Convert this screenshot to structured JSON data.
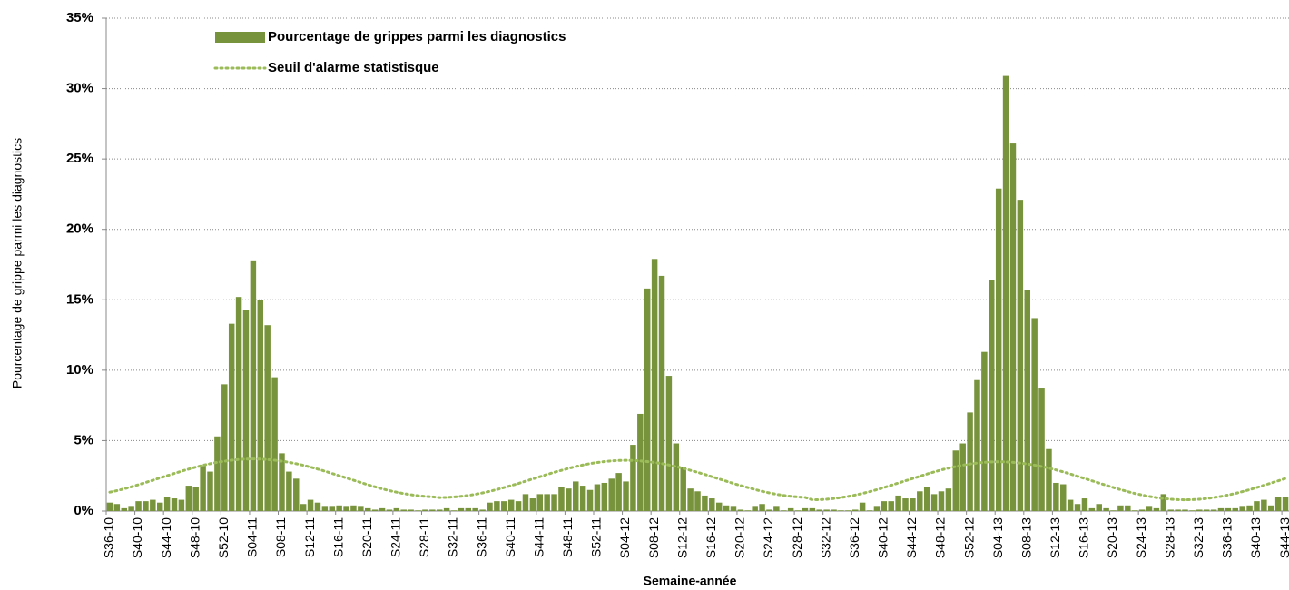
{
  "chart_data": {
    "type": "bar",
    "x_label": "Semaine-année",
    "y_label": "Pourcentage de grippe parmi les diagnostics",
    "categories": [
      "S36-10",
      null,
      null,
      null,
      "S40-10",
      null,
      null,
      null,
      "S44-10",
      null,
      null,
      null,
      "S48-10",
      null,
      null,
      null,
      "S52-10",
      null,
      null,
      null,
      "S04-11",
      null,
      null,
      null,
      "S08-11",
      null,
      null,
      null,
      "S12-11",
      null,
      null,
      null,
      "S16-11",
      null,
      null,
      null,
      "S20-11",
      null,
      null,
      null,
      "S24-11",
      null,
      null,
      null,
      "S28-11",
      null,
      null,
      null,
      "S32-11",
      null,
      null,
      null,
      "S36-11",
      null,
      null,
      null,
      "S40-11",
      null,
      null,
      null,
      "S44-11",
      null,
      null,
      null,
      "S48-11",
      null,
      null,
      null,
      "S52-11",
      null,
      null,
      null,
      "S04-12",
      null,
      null,
      null,
      "S08-12",
      null,
      null,
      null,
      "S12-12",
      null,
      null,
      null,
      "S16-12",
      null,
      null,
      null,
      "S20-12",
      null,
      null,
      null,
      "S24-12",
      null,
      null,
      null,
      "S28-12",
      null,
      null,
      null,
      "S32-12",
      null,
      null,
      null,
      "S36-12",
      null,
      null,
      null,
      "S40-12",
      null,
      null,
      null,
      "S44-12",
      null,
      null,
      null,
      "S48-12",
      null,
      null,
      null,
      "S52-12",
      null,
      null,
      null,
      "S04-13",
      null,
      null,
      null,
      "S08-13",
      null,
      null,
      null,
      "S12-13",
      null,
      null,
      null,
      "S16-13",
      null,
      null,
      null,
      "S20-13",
      null,
      null,
      null,
      "S24-13",
      null,
      null,
      null,
      "S28-13",
      null,
      null,
      null,
      "S32-13",
      null,
      null,
      null,
      "S36-13",
      null,
      null,
      null,
      "S40-13",
      null,
      null,
      null,
      "S44-13"
    ],
    "series": [
      {
        "name": "Pourcentage de grippes parmi les diagnostics",
        "type": "bar",
        "color": "#77933c",
        "values": [
          0.6,
          0.5,
          0.2,
          0.3,
          0.7,
          0.7,
          0.8,
          0.6,
          1.0,
          0.9,
          0.8,
          1.8,
          1.7,
          3.2,
          2.8,
          5.3,
          9.0,
          13.3,
          15.2,
          14.3,
          17.8,
          15.0,
          13.2,
          9.5,
          4.1,
          2.8,
          2.3,
          0.5,
          0.8,
          0.6,
          0.3,
          0.3,
          0.4,
          0.3,
          0.4,
          0.3,
          0.2,
          0.1,
          0.2,
          0.1,
          0.2,
          0.1,
          0.1,
          0.05,
          0.1,
          0.1,
          0.1,
          0.2,
          0.05,
          0.2,
          0.2,
          0.2,
          0.1,
          0.6,
          0.7,
          0.7,
          0.8,
          0.7,
          1.2,
          0.9,
          1.2,
          1.2,
          1.2,
          1.7,
          1.6,
          2.1,
          1.8,
          1.5,
          1.9,
          2.0,
          2.3,
          2.7,
          2.1,
          4.7,
          6.9,
          15.8,
          17.9,
          16.7,
          9.6,
          4.8,
          3.1,
          1.6,
          1.4,
          1.1,
          0.9,
          0.6,
          0.4,
          0.3,
          0.1,
          0.05,
          0.3,
          0.5,
          0.1,
          0.3,
          0.05,
          0.2,
          0.05,
          0.2,
          0.2,
          0.1,
          0.1,
          0.1,
          0.05,
          0.05,
          0.1,
          0.6,
          0.05,
          0.3,
          0.7,
          0.7,
          1.1,
          0.9,
          0.9,
          1.4,
          1.7,
          1.2,
          1.4,
          1.6,
          4.3,
          4.8,
          7.0,
          9.3,
          11.3,
          16.4,
          22.9,
          30.9,
          26.1,
          22.1,
          15.7,
          13.7,
          8.7,
          4.4,
          2.0,
          1.9,
          0.8,
          0.5,
          0.9,
          0.2,
          0.5,
          0.2,
          0.05,
          0.4,
          0.4,
          0.05,
          0.1,
          0.3,
          0.2,
          1.2,
          0.1,
          0.1,
          0.1,
          0.05,
          0.1,
          0.1,
          0.1,
          0.2,
          0.2,
          0.2,
          0.3,
          0.4,
          0.7,
          0.8,
          0.4,
          1.0,
          1.0
        ]
      },
      {
        "name": "Seuil d'alarme statistisque",
        "type": "line",
        "line_style": "dotted",
        "color": "#9bbb59",
        "values": [
          1.34,
          1.45,
          1.58,
          1.72,
          1.87,
          2.03,
          2.19,
          2.35,
          2.51,
          2.67,
          2.83,
          2.98,
          3.12,
          3.25,
          3.36,
          3.46,
          3.54,
          3.61,
          3.66,
          3.69,
          3.7,
          3.69,
          3.66,
          3.61,
          3.54,
          3.46,
          3.36,
          3.25,
          3.12,
          2.98,
          2.83,
          2.67,
          2.51,
          2.35,
          2.19,
          2.03,
          1.87,
          1.72,
          1.58,
          1.45,
          1.34,
          1.24,
          1.16,
          1.09,
          1.04,
          1.01,
          0.96,
          0.97,
          1.0,
          1.05,
          1.11,
          1.19,
          1.29,
          1.4,
          1.53,
          1.67,
          1.81,
          1.96,
          2.12,
          2.28,
          2.44,
          2.6,
          2.75,
          2.89,
          3.03,
          3.16,
          3.27,
          3.37,
          3.45,
          3.51,
          3.56,
          3.59,
          3.6,
          3.59,
          3.56,
          3.51,
          3.45,
          3.37,
          3.27,
          3.16,
          3.03,
          2.89,
          2.75,
          2.6,
          2.44,
          2.28,
          2.12,
          1.96,
          1.81,
          1.67,
          1.53,
          1.4,
          1.29,
          1.19,
          1.11,
          1.05,
          1.0,
          0.97,
          0.8,
          0.81,
          0.84,
          0.89,
          0.96,
          1.04,
          1.14,
          1.25,
          1.38,
          1.52,
          1.67,
          1.83,
          1.99,
          2.15,
          2.31,
          2.47,
          2.63,
          2.78,
          2.92,
          3.05,
          3.16,
          3.26,
          3.34,
          3.41,
          3.46,
          3.49,
          3.5,
          3.49,
          3.46,
          3.41,
          3.34,
          3.26,
          3.16,
          3.05,
          2.92,
          2.78,
          2.63,
          2.47,
          2.31,
          2.15,
          1.99,
          1.83,
          1.67,
          1.52,
          1.38,
          1.25,
          1.14,
          1.04,
          0.96,
          0.89,
          0.84,
          0.81,
          0.8,
          0.81,
          0.84,
          0.89,
          0.96,
          1.04,
          1.14,
          1.25,
          1.38,
          1.52,
          1.67,
          1.83,
          1.99,
          2.15,
          2.31
        ]
      }
    ],
    "ylim": [
      0,
      35
    ],
    "yticks": [
      {
        "value": 0,
        "label": "0%"
      },
      {
        "value": 5,
        "label": "5%"
      },
      {
        "value": 10,
        "label": "10%"
      },
      {
        "value": 15,
        "label": "15%"
      },
      {
        "value": 20,
        "label": "20%"
      },
      {
        "value": 25,
        "label": "25%"
      },
      {
        "value": 30,
        "label": "30%"
      },
      {
        "value": 35,
        "label": "35%"
      }
    ],
    "grid": true,
    "legend": "top-left"
  }
}
